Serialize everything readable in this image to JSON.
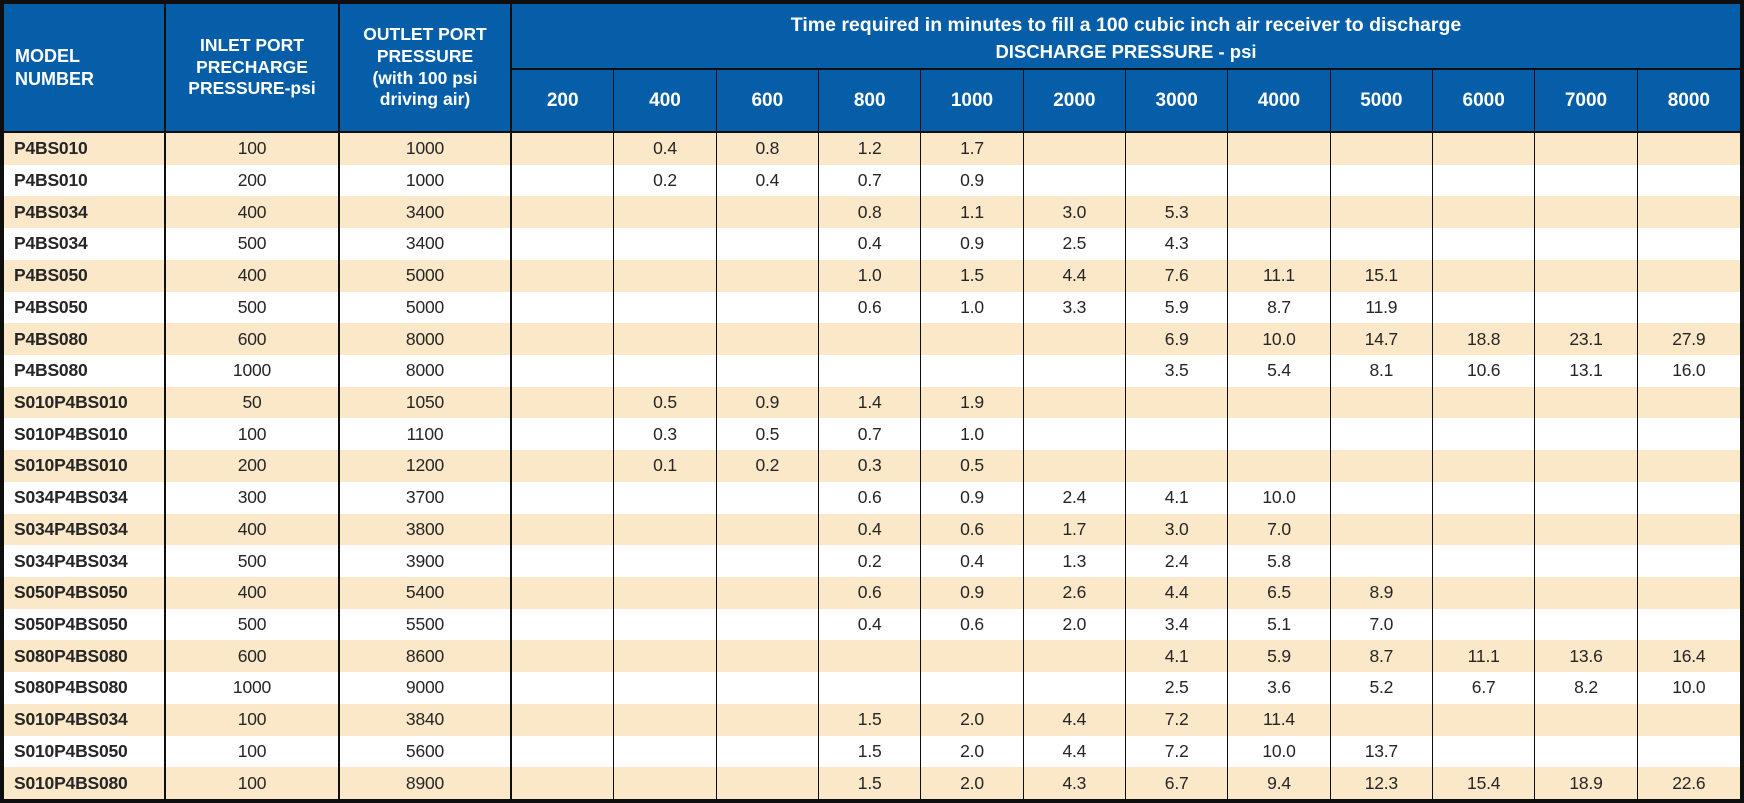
{
  "colors": {
    "header_blue": "#065EA8",
    "row_cream": "#FAE8C8",
    "row_white": "#FFFFFF",
    "border_black": "#0E0E0E",
    "header_text": "#FFFFFF",
    "data_text": "#262626"
  },
  "table": {
    "headers": {
      "model": "MODEL\nNUMBER",
      "inlet": "INLET PORT\nPRECHARGE\nPRESSURE-psi",
      "outlet": "OUTLET PORT\nPRESSURE\n(with 100 psi\ndriving air)",
      "span_line1": "Time required in minutes to fill a 100 cubic inch air receiver to discharge",
      "span_line2": "DISCHARGE PRESSURE - psi"
    },
    "discharge_columns": [
      "200",
      "400",
      "600",
      "800",
      "1000",
      "2000",
      "3000",
      "4000",
      "5000",
      "6000",
      "7000",
      "8000"
    ],
    "rows": [
      {
        "model": "P4BS010",
        "inlet": "100",
        "outlet": "1000",
        "times": [
          "",
          "0.4",
          "0.8",
          "1.2",
          "1.7",
          "",
          "",
          "",
          "",
          "",
          "",
          ""
        ]
      },
      {
        "model": "P4BS010",
        "inlet": "200",
        "outlet": "1000",
        "times": [
          "",
          "0.2",
          "0.4",
          "0.7",
          "0.9",
          "",
          "",
          "",
          "",
          "",
          "",
          ""
        ]
      },
      {
        "model": "P4BS034",
        "inlet": "400",
        "outlet": "3400",
        "times": [
          "",
          "",
          "",
          "0.8",
          "1.1",
          "3.0",
          "5.3",
          "",
          "",
          "",
          "",
          ""
        ]
      },
      {
        "model": "P4BS034",
        "inlet": "500",
        "outlet": "3400",
        "times": [
          "",
          "",
          "",
          "0.4",
          "0.9",
          "2.5",
          "4.3",
          "",
          "",
          "",
          "",
          ""
        ]
      },
      {
        "model": "P4BS050",
        "inlet": "400",
        "outlet": "5000",
        "times": [
          "",
          "",
          "",
          "1.0",
          "1.5",
          "4.4",
          "7.6",
          "11.1",
          "15.1",
          "",
          "",
          ""
        ]
      },
      {
        "model": "P4BS050",
        "inlet": "500",
        "outlet": "5000",
        "times": [
          "",
          "",
          "",
          "0.6",
          "1.0",
          "3.3",
          "5.9",
          "8.7",
          "11.9",
          "",
          "",
          ""
        ]
      },
      {
        "model": "P4BS080",
        "inlet": "600",
        "outlet": "8000",
        "times": [
          "",
          "",
          "",
          "",
          "",
          "",
          "6.9",
          "10.0",
          "14.7",
          "18.8",
          "23.1",
          "27.9"
        ]
      },
      {
        "model": "P4BS080",
        "inlet": "1000",
        "outlet": "8000",
        "times": [
          "",
          "",
          "",
          "",
          "",
          "",
          "3.5",
          "5.4",
          "8.1",
          "10.6",
          "13.1",
          "16.0"
        ]
      },
      {
        "model": "S010P4BS010",
        "inlet": "50",
        "outlet": "1050",
        "times": [
          "",
          "0.5",
          "0.9",
          "1.4",
          "1.9",
          "",
          "",
          "",
          "",
          "",
          "",
          ""
        ]
      },
      {
        "model": "S010P4BS010",
        "inlet": "100",
        "outlet": "1100",
        "times": [
          "",
          "0.3",
          "0.5",
          "0.7",
          "1.0",
          "",
          "",
          "",
          "",
          "",
          "",
          ""
        ]
      },
      {
        "model": "S010P4BS010",
        "inlet": "200",
        "outlet": "1200",
        "times": [
          "",
          "0.1",
          "0.2",
          "0.3",
          "0.5",
          "",
          "",
          "",
          "",
          "",
          "",
          ""
        ]
      },
      {
        "model": "S034P4BS034",
        "inlet": "300",
        "outlet": "3700",
        "times": [
          "",
          "",
          "",
          "0.6",
          "0.9",
          "2.4",
          "4.1",
          "10.0",
          "",
          "",
          "",
          ""
        ]
      },
      {
        "model": "S034P4BS034",
        "inlet": "400",
        "outlet": "3800",
        "times": [
          "",
          "",
          "",
          "0.4",
          "0.6",
          "1.7",
          "3.0",
          "7.0",
          "",
          "",
          "",
          ""
        ]
      },
      {
        "model": "S034P4BS034",
        "inlet": "500",
        "outlet": "3900",
        "times": [
          "",
          "",
          "",
          "0.2",
          "0.4",
          "1.3",
          "2.4",
          "5.8",
          "",
          "",
          "",
          ""
        ]
      },
      {
        "model": "S050P4BS050",
        "inlet": "400",
        "outlet": "5400",
        "times": [
          "",
          "",
          "",
          "0.6",
          "0.9",
          "2.6",
          "4.4",
          "6.5",
          "8.9",
          "",
          "",
          ""
        ]
      },
      {
        "model": "S050P4BS050",
        "inlet": "500",
        "outlet": "5500",
        "times": [
          "",
          "",
          "",
          "0.4",
          "0.6",
          "2.0",
          "3.4",
          "5.1",
          "7.0",
          "",
          "",
          ""
        ]
      },
      {
        "model": "S080P4BS080",
        "inlet": "600",
        "outlet": "8600",
        "times": [
          "",
          "",
          "",
          "",
          "",
          "",
          "4.1",
          "5.9",
          "8.7",
          "11.1",
          "13.6",
          "16.4"
        ]
      },
      {
        "model": "S080P4BS080",
        "inlet": "1000",
        "outlet": "9000",
        "times": [
          "",
          "",
          "",
          "",
          "",
          "",
          "2.5",
          "3.6",
          "5.2",
          "6.7",
          "8.2",
          "10.0"
        ]
      },
      {
        "model": "S010P4BS034",
        "inlet": "100",
        "outlet": "3840",
        "times": [
          "",
          "",
          "",
          "1.5",
          "2.0",
          "4.4",
          "7.2",
          "11.4",
          "",
          "",
          "",
          ""
        ]
      },
      {
        "model": "S010P4BS050",
        "inlet": "100",
        "outlet": "5600",
        "times": [
          "",
          "",
          "",
          "1.5",
          "2.0",
          "4.4",
          "7.2",
          "10.0",
          "13.7",
          "",
          "",
          ""
        ]
      },
      {
        "model": "S010P4BS080",
        "inlet": "100",
        "outlet": "8900",
        "times": [
          "",
          "",
          "",
          "1.5",
          "2.0",
          "4.3",
          "6.7",
          "9.4",
          "12.3",
          "15.4",
          "18.9",
          "22.6"
        ]
      }
    ]
  }
}
